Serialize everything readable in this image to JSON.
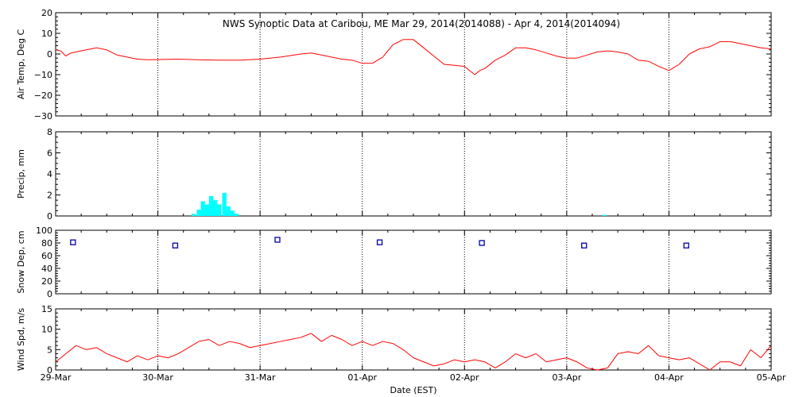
{
  "chart_data": {
    "type": "line",
    "title": "NWS Synoptic Data at Caribou, ME   Mar 29, 2014(2014088) - Apr  4, 2014(2014094)",
    "xlabel": "Date (EST)",
    "x_ticks": [
      "29-Mar",
      "30-Mar",
      "31-Mar",
      "01-Apr",
      "02-Apr",
      "03-Apr",
      "04-Apr",
      "05-Apr"
    ],
    "x_range_days": [
      0,
      7
    ],
    "colors": {
      "temp": "#ff0000",
      "wind": "#ff0000",
      "precip": "#00ffff",
      "snow": "#0000aa"
    },
    "panels": [
      {
        "id": "temp",
        "type": "line",
        "ylabel": "Air Temp, Deg C",
        "ylim": [
          -30,
          20
        ],
        "yticks": [
          "20",
          "10",
          "0",
          "−10",
          "−20",
          "−30"
        ],
        "ytick_values": [
          20,
          10,
          0,
          -10,
          -20,
          -30
        ],
        "x": [
          0,
          0.05,
          0.1,
          0.15,
          0.2,
          0.3,
          0.4,
          0.5,
          0.6,
          0.7,
          0.75,
          0.8,
          0.9,
          1.0,
          1.2,
          1.4,
          1.6,
          1.8,
          2.0,
          2.2,
          2.4,
          2.5,
          2.6,
          2.7,
          2.8,
          2.9,
          3.0,
          3.1,
          3.2,
          3.3,
          3.4,
          3.5,
          3.6,
          3.7,
          3.8,
          3.9,
          4.0,
          4.1,
          4.15,
          4.2,
          4.3,
          4.4,
          4.5,
          4.6,
          4.7,
          4.8,
          4.9,
          5.0,
          5.1,
          5.2,
          5.3,
          5.4,
          5.5,
          5.6,
          5.7,
          5.8,
          5.9,
          6.0,
          6.1,
          6.2,
          6.3,
          6.4,
          6.5,
          6.6,
          6.7,
          6.8,
          6.9,
          7.0
        ],
        "y": [
          2,
          1.5,
          -1,
          0.5,
          1,
          2,
          3,
          2,
          -0.5,
          -1.5,
          -2,
          -2.5,
          -2.8,
          -2.7,
          -2.5,
          -2.8,
          -3,
          -3,
          -2.5,
          -1.5,
          0,
          0.5,
          -0.5,
          -1.5,
          -2.5,
          -3,
          -4.5,
          -4.5,
          -1.5,
          4.5,
          7,
          7,
          3,
          -1,
          -5,
          -5.5,
          -6,
          -10,
          -8,
          -7,
          -3,
          -0.5,
          3,
          3,
          2,
          0.5,
          -1,
          -2,
          -2,
          -0.5,
          1,
          1.5,
          1,
          0,
          -3,
          -3.5,
          -6,
          -8,
          -5,
          0,
          2.5,
          3.5,
          6,
          6,
          5,
          4,
          3,
          2.5
        ]
      },
      {
        "id": "precip",
        "type": "bar",
        "ylabel": "Precip, mm",
        "ylim": [
          0,
          8
        ],
        "yticks": [
          "8",
          "6",
          "4",
          "2",
          "0"
        ],
        "ytick_values": [
          8,
          6,
          4,
          2,
          0
        ],
        "bar_width_days": 0.04167,
        "x": [
          1.33,
          1.38,
          1.42,
          1.46,
          1.5,
          1.54,
          1.58,
          1.63,
          1.67,
          1.71,
          1.75,
          5.35
        ],
        "values": [
          0.2,
          0.6,
          1.4,
          1.1,
          1.9,
          1.5,
          1.1,
          2.2,
          0.9,
          0.5,
          0.2,
          0.1
        ]
      },
      {
        "id": "snow",
        "type": "scatter",
        "ylabel": "Snow Dep, cm",
        "ylim": [
          0,
          100
        ],
        "yticks": [
          "100",
          "80",
          "60",
          "40",
          "20",
          "0"
        ],
        "ytick_values": [
          100,
          80,
          60,
          40,
          20,
          0
        ],
        "x": [
          0.17,
          1.17,
          2.17,
          3.17,
          4.17,
          5.17,
          6.17
        ],
        "values": [
          81,
          76,
          85,
          81,
          80,
          76,
          76
        ]
      },
      {
        "id": "wind",
        "type": "line",
        "ylabel": "Wind Spd, m/s",
        "ylim": [
          0,
          15
        ],
        "yticks": [
          "15",
          "10",
          "5",
          "0"
        ],
        "ytick_values": [
          15,
          10,
          5,
          0
        ],
        "x": [
          0,
          0.1,
          0.2,
          0.3,
          0.4,
          0.5,
          0.6,
          0.7,
          0.8,
          0.9,
          1.0,
          1.1,
          1.2,
          1.3,
          1.4,
          1.5,
          1.6,
          1.7,
          1.8,
          1.9,
          2.0,
          2.1,
          2.2,
          2.3,
          2.4,
          2.5,
          2.6,
          2.7,
          2.8,
          2.9,
          3.0,
          3.1,
          3.2,
          3.3,
          3.4,
          3.5,
          3.6,
          3.7,
          3.8,
          3.9,
          4.0,
          4.1,
          4.2,
          4.3,
          4.4,
          4.5,
          4.6,
          4.7,
          4.8,
          4.9,
          5.0,
          5.1,
          5.2,
          5.3,
          5.4,
          5.5,
          5.6,
          5.7,
          5.8,
          5.9,
          6.0,
          6.1,
          6.2,
          6.3,
          6.4,
          6.5,
          6.6,
          6.7,
          6.8,
          6.9,
          7.0
        ],
        "y": [
          2,
          4,
          6,
          5,
          5.5,
          4,
          3,
          2,
          3.5,
          2.5,
          3.5,
          3,
          4,
          5.5,
          7,
          7.5,
          6,
          7,
          6.5,
          5.5,
          6,
          6.5,
          7,
          7.5,
          8,
          9,
          7,
          8.5,
          7.5,
          6,
          7,
          6,
          7,
          6.5,
          5,
          3,
          2,
          1,
          1.5,
          2.5,
          2,
          2.5,
          2,
          0.5,
          2,
          4,
          3,
          4,
          2,
          2.5,
          3,
          2,
          0.5,
          0,
          0.5,
          4,
          4.5,
          4,
          6,
          3.5,
          3,
          2.5,
          3,
          1.5,
          0,
          2,
          2,
          1,
          5,
          3,
          6
        ]
      }
    ]
  }
}
